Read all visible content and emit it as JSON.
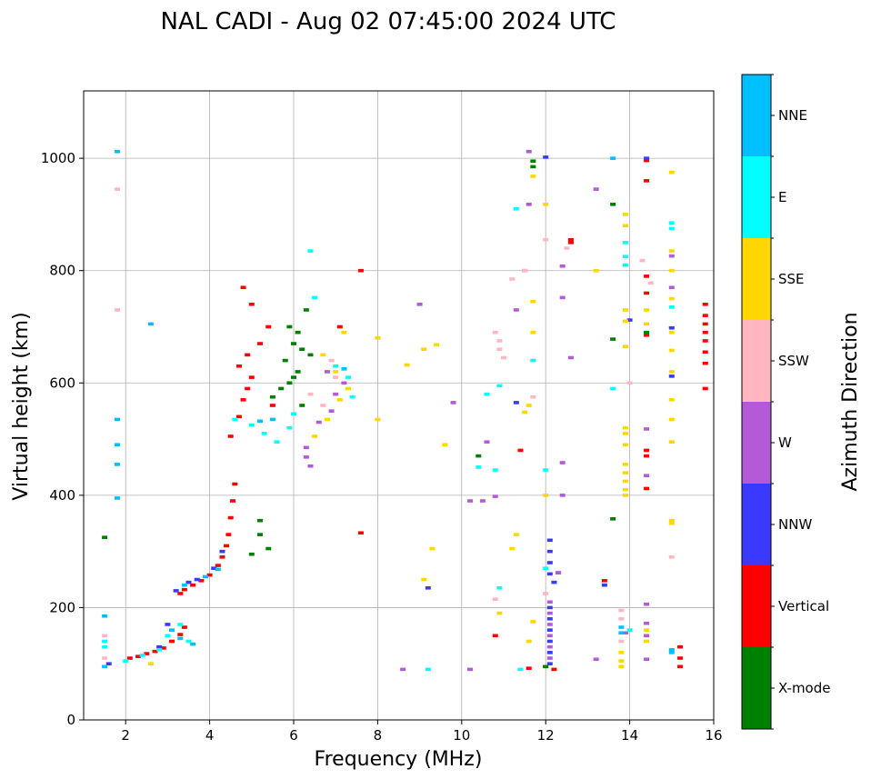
{
  "chart_data": {
    "type": "scatter",
    "title": "NAL CADI - Aug 02 07:45:00 2024 UTC",
    "xlabel": "Frequency (MHz)",
    "ylabel": "Virtual height (km)",
    "xlim": [
      1,
      16
    ],
    "ylim": [
      0,
      1120
    ],
    "xticks": [
      2,
      4,
      6,
      8,
      10,
      12,
      14,
      16
    ],
    "yticks": [
      0,
      200,
      400,
      600,
      800,
      1000
    ],
    "grid": true,
    "colorbar": {
      "label": "Azimuth Direction",
      "categories": [
        {
          "name": "X-mode",
          "color": "#008000"
        },
        {
          "name": "Vertical",
          "color": "#ff0000"
        },
        {
          "name": "NNW",
          "color": "#3a3aff"
        },
        {
          "name": "W",
          "color": "#b45ad6"
        },
        {
          "name": "SSW",
          "color": "#ffb6c1"
        },
        {
          "name": "SSE",
          "color": "#ffd700"
        },
        {
          "name": "E",
          "color": "#00ffff"
        },
        {
          "name": "NNE",
          "color": "#00bfff"
        }
      ]
    },
    "series": [
      {
        "name": "Vertical",
        "color": "#ff0000",
        "points": [
          [
            2.1,
            110
          ],
          [
            2.3,
            113
          ],
          [
            2.5,
            118
          ],
          [
            2.7,
            122
          ],
          [
            2.9,
            128
          ],
          [
            3.1,
            140
          ],
          [
            3.3,
            152
          ],
          [
            3.4,
            165
          ],
          [
            3.3,
            225
          ],
          [
            3.4,
            232
          ],
          [
            3.6,
            240
          ],
          [
            3.8,
            248
          ],
          [
            4.0,
            258
          ],
          [
            4.2,
            275
          ],
          [
            4.3,
            290
          ],
          [
            4.4,
            310
          ],
          [
            4.45,
            330
          ],
          [
            4.5,
            360
          ],
          [
            4.55,
            390
          ],
          [
            4.6,
            420
          ],
          [
            4.5,
            505
          ],
          [
            4.7,
            540
          ],
          [
            4.8,
            570
          ],
          [
            4.9,
            590
          ],
          [
            5.0,
            610
          ],
          [
            4.7,
            630
          ],
          [
            4.9,
            650
          ],
          [
            5.2,
            670
          ],
          [
            5.4,
            700
          ],
          [
            5.0,
            740
          ],
          [
            4.8,
            770
          ],
          [
            5.5,
            560
          ],
          [
            7.6,
            800
          ],
          [
            7.1,
            700
          ],
          [
            7.6,
            333
          ],
          [
            11.4,
            480
          ],
          [
            12.0,
            95
          ],
          [
            12.2,
            90
          ],
          [
            14.4,
            480
          ],
          [
            14.4,
            470
          ],
          [
            14.4,
            412
          ],
          [
            14.4,
            685
          ],
          [
            14.4,
            760
          ],
          [
            14.4,
            790
          ],
          [
            14.4,
            960
          ],
          [
            14.4,
            996
          ],
          [
            12.6,
            855
          ],
          [
            12.6,
            850
          ],
          [
            10.8,
            150
          ],
          [
            11.6,
            92
          ],
          [
            13.4,
            248
          ],
          [
            15.8,
            740
          ],
          [
            15.8,
            720
          ],
          [
            15.8,
            705
          ],
          [
            15.8,
            690
          ],
          [
            15.8,
            675
          ],
          [
            15.8,
            655
          ],
          [
            15.8,
            635
          ],
          [
            15.8,
            590
          ],
          [
            15.2,
            130
          ],
          [
            15.2,
            110
          ],
          [
            15.2,
            95
          ]
        ]
      },
      {
        "name": "X-mode",
        "color": "#008000",
        "points": [
          [
            5.2,
            330
          ],
          [
            5.2,
            355
          ],
          [
            5.0,
            295
          ],
          [
            5.4,
            305
          ],
          [
            5.9,
            600
          ],
          [
            6.0,
            610
          ],
          [
            6.1,
            620
          ],
          [
            5.8,
            640
          ],
          [
            6.2,
            660
          ],
          [
            6.0,
            670
          ],
          [
            6.1,
            690
          ],
          [
            5.9,
            700
          ],
          [
            6.3,
            730
          ],
          [
            6.2,
            560
          ],
          [
            6.4,
            650
          ],
          [
            5.5,
            575
          ],
          [
            5.7,
            590
          ],
          [
            1.5,
            325
          ],
          [
            11.7,
            995
          ],
          [
            11.7,
            985
          ],
          [
            14.4,
            690
          ],
          [
            13.6,
            918
          ],
          [
            13.6,
            678
          ],
          [
            13.6,
            358
          ],
          [
            12.0,
            95
          ],
          [
            10.4,
            470
          ]
        ]
      },
      {
        "name": "NNW",
        "color": "#3a3aff",
        "points": [
          [
            3.2,
            230
          ],
          [
            3.5,
            245
          ],
          [
            3.7,
            250
          ],
          [
            4.1,
            270
          ],
          [
            4.3,
            300
          ],
          [
            3.0,
            170
          ],
          [
            2.8,
            130
          ],
          [
            1.6,
            100
          ],
          [
            12.1,
            320
          ],
          [
            12.1,
            300
          ],
          [
            12.1,
            280
          ],
          [
            12.1,
            260
          ],
          [
            12.2,
            245
          ],
          [
            12.1,
            200
          ],
          [
            12.1,
            180
          ],
          [
            12.1,
            160
          ],
          [
            12.1,
            140
          ],
          [
            12.1,
            120
          ],
          [
            12.1,
            100
          ],
          [
            12.3,
            262
          ],
          [
            9.2,
            235
          ],
          [
            11.3,
            565
          ],
          [
            12.0,
            1002
          ],
          [
            13.4,
            240
          ],
          [
            14.4,
            1000
          ],
          [
            15.0,
            698
          ],
          [
            15.0,
            612
          ],
          [
            14.0,
            712
          ]
        ]
      },
      {
        "name": "W",
        "color": "#b45ad6",
        "points": [
          [
            6.3,
            485
          ],
          [
            6.6,
            530
          ],
          [
            6.9,
            550
          ],
          [
            7.0,
            580
          ],
          [
            7.2,
            600
          ],
          [
            6.8,
            620
          ],
          [
            6.4,
            452
          ],
          [
            6.3,
            468
          ],
          [
            12.1,
            210
          ],
          [
            12.1,
            190
          ],
          [
            12.1,
            170
          ],
          [
            12.1,
            150
          ],
          [
            12.1,
            130
          ],
          [
            12.1,
            110
          ],
          [
            12.3,
            262
          ],
          [
            12.4,
            400
          ],
          [
            12.4,
            458
          ],
          [
            12.4,
            752
          ],
          [
            12.4,
            808
          ],
          [
            12.6,
            645
          ],
          [
            13.2,
            945
          ],
          [
            13.2,
            108
          ],
          [
            14.4,
            518
          ],
          [
            14.4,
            435
          ],
          [
            14.4,
            206
          ],
          [
            14.4,
            172
          ],
          [
            14.4,
            150
          ],
          [
            14.4,
            108
          ],
          [
            13.9,
            155
          ],
          [
            9.0,
            740
          ],
          [
            9.8,
            565
          ],
          [
            10.2,
            390
          ],
          [
            10.5,
            390
          ],
          [
            10.8,
            398
          ],
          [
            11.3,
            730
          ],
          [
            11.6,
            1012
          ],
          [
            11.6,
            918
          ],
          [
            11.5,
            800
          ],
          [
            10.6,
            495
          ],
          [
            8.6,
            90
          ],
          [
            10.2,
            90
          ],
          [
            15.0,
            826
          ],
          [
            15.0,
            770
          ]
        ]
      },
      {
        "name": "SSW",
        "color": "#ffb6c1",
        "points": [
          [
            1.5,
            150
          ],
          [
            1.5,
            110
          ],
          [
            6.4,
            580
          ],
          [
            6.7,
            560
          ],
          [
            7.0,
            610
          ],
          [
            6.9,
            640
          ],
          [
            11.0,
            645
          ],
          [
            11.2,
            785
          ],
          [
            11.5,
            800
          ],
          [
            10.8,
            690
          ],
          [
            10.9,
            675
          ],
          [
            10.9,
            660
          ],
          [
            10.8,
            215
          ],
          [
            12.0,
            225
          ],
          [
            12.5,
            840
          ],
          [
            13.8,
            195
          ],
          [
            13.8,
            180
          ],
          [
            13.8,
            140
          ],
          [
            14.3,
            818
          ],
          [
            14.5,
            778
          ],
          [
            15.0,
            290
          ],
          [
            14.0,
            600
          ],
          [
            1.8,
            730
          ],
          [
            1.8,
            945
          ],
          [
            11.7,
            575
          ],
          [
            12.0,
            855
          ]
        ]
      },
      {
        "name": "SSE",
        "color": "#ffd700",
        "points": [
          [
            2.6,
            100
          ],
          [
            6.5,
            505
          ],
          [
            6.8,
            535
          ],
          [
            7.1,
            570
          ],
          [
            7.3,
            590
          ],
          [
            7.0,
            620
          ],
          [
            6.7,
            650
          ],
          [
            7.2,
            690
          ],
          [
            8.0,
            680
          ],
          [
            8.0,
            535
          ],
          [
            8.7,
            632
          ],
          [
            9.1,
            660
          ],
          [
            9.4,
            668
          ],
          [
            9.6,
            490
          ],
          [
            9.3,
            305
          ],
          [
            9.1,
            250
          ],
          [
            11.3,
            330
          ],
          [
            11.2,
            305
          ],
          [
            11.5,
            548
          ],
          [
            11.6,
            560
          ],
          [
            11.7,
            640
          ],
          [
            11.7,
            690
          ],
          [
            11.7,
            745
          ],
          [
            11.7,
            175
          ],
          [
            11.6,
            140
          ],
          [
            11.7,
            968
          ],
          [
            12.0,
            918
          ],
          [
            12.0,
            400
          ],
          [
            13.2,
            800
          ],
          [
            13.9,
            900
          ],
          [
            13.9,
            880
          ],
          [
            13.9,
            730
          ],
          [
            13.9,
            710
          ],
          [
            13.9,
            665
          ],
          [
            13.9,
            520
          ],
          [
            13.9,
            510
          ],
          [
            13.9,
            490
          ],
          [
            13.9,
            455
          ],
          [
            13.9,
            440
          ],
          [
            13.9,
            425
          ],
          [
            13.9,
            410
          ],
          [
            13.9,
            400
          ],
          [
            13.8,
            120
          ],
          [
            13.8,
            105
          ],
          [
            13.8,
            95
          ],
          [
            14.4,
            730
          ],
          [
            14.4,
            705
          ],
          [
            14.4,
            160
          ],
          [
            14.4,
            140
          ],
          [
            15.0,
            975
          ],
          [
            15.0,
            835
          ],
          [
            15.0,
            800
          ],
          [
            15.0,
            750
          ],
          [
            15.0,
            690
          ],
          [
            15.0,
            658
          ],
          [
            15.0,
            620
          ],
          [
            15.0,
            570
          ],
          [
            15.0,
            535
          ],
          [
            15.0,
            495
          ],
          [
            15.0,
            355
          ],
          [
            15.0,
            350
          ],
          [
            10.9,
            190
          ]
        ]
      },
      {
        "name": "E",
        "color": "#00ffff",
        "points": [
          [
            1.5,
            140
          ],
          [
            1.5,
            130
          ],
          [
            2.0,
            105
          ],
          [
            2.4,
            115
          ],
          [
            2.8,
            125
          ],
          [
            3.0,
            150
          ],
          [
            3.3,
            170
          ],
          [
            3.5,
            140
          ],
          [
            4.6,
            535
          ],
          [
            5.0,
            525
          ],
          [
            5.3,
            510
          ],
          [
            5.6,
            495
          ],
          [
            5.9,
            520
          ],
          [
            6.0,
            545
          ],
          [
            6.4,
            835
          ],
          [
            6.5,
            752
          ],
          [
            7.0,
            630
          ],
          [
            7.3,
            610
          ],
          [
            7.4,
            575
          ],
          [
            10.4,
            450
          ],
          [
            10.6,
            580
          ],
          [
            10.9,
            595
          ],
          [
            10.8,
            445
          ],
          [
            10.9,
            235
          ],
          [
            11.3,
            910
          ],
          [
            11.7,
            640
          ],
          [
            12.0,
            445
          ],
          [
            12.0,
            270
          ],
          [
            13.6,
            590
          ],
          [
            13.9,
            850
          ],
          [
            13.9,
            825
          ],
          [
            13.9,
            810
          ],
          [
            15.0,
            885
          ],
          [
            15.0,
            875
          ],
          [
            15.0,
            735
          ],
          [
            9.2,
            90
          ],
          [
            11.4,
            90
          ],
          [
            14.0,
            160
          ]
        ]
      },
      {
        "name": "NNE",
        "color": "#00bfff",
        "points": [
          [
            1.8,
            1012
          ],
          [
            1.8,
            535
          ],
          [
            1.8,
            490
          ],
          [
            1.8,
            455
          ],
          [
            1.8,
            395
          ],
          [
            1.5,
            185
          ],
          [
            2.6,
            705
          ],
          [
            3.1,
            160
          ],
          [
            3.3,
            145
          ],
          [
            3.6,
            135
          ],
          [
            3.4,
            240
          ],
          [
            3.9,
            255
          ],
          [
            4.2,
            268
          ],
          [
            5.2,
            532
          ],
          [
            5.5,
            535
          ],
          [
            7.2,
            625
          ],
          [
            13.6,
            1000
          ],
          [
            15.0,
            125
          ],
          [
            15.0,
            120
          ],
          [
            13.8,
            155
          ],
          [
            13.8,
            165
          ],
          [
            1.5,
            95
          ]
        ]
      }
    ]
  }
}
